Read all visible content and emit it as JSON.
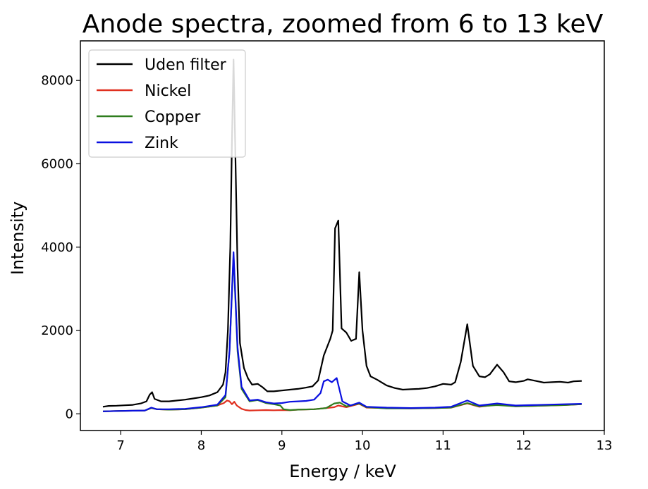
{
  "chart_data": {
    "type": "line",
    "title": "Anode spectra, zoomed from 6 to 13 keV",
    "xlabel": "Energy / keV",
    "ylabel": "Intensity",
    "xlim": [
      6.5,
      13.0
    ],
    "ylim": [
      -400,
      8950
    ],
    "xticks": [
      7,
      8,
      9,
      10,
      11,
      12,
      13
    ],
    "yticks": [
      0,
      2000,
      4000,
      6000,
      8000
    ],
    "grid": false,
    "legend_position": "top-left",
    "series": [
      {
        "name": "Uden filter",
        "color": "#000000",
        "points": [
          [
            6.78,
            170
          ],
          [
            6.85,
            190
          ],
          [
            6.95,
            195
          ],
          [
            7.05,
            205
          ],
          [
            7.15,
            215
          ],
          [
            7.25,
            250
          ],
          [
            7.32,
            300
          ],
          [
            7.36,
            460
          ],
          [
            7.39,
            520
          ],
          [
            7.42,
            360
          ],
          [
            7.5,
            300
          ],
          [
            7.6,
            300
          ],
          [
            7.7,
            320
          ],
          [
            7.8,
            340
          ],
          [
            7.9,
            370
          ],
          [
            8.0,
            400
          ],
          [
            8.1,
            440
          ],
          [
            8.2,
            520
          ],
          [
            8.27,
            700
          ],
          [
            8.3,
            1000
          ],
          [
            8.33,
            2000
          ],
          [
            8.36,
            4000
          ],
          [
            8.38,
            6500
          ],
          [
            8.4,
            8500
          ],
          [
            8.42,
            6500
          ],
          [
            8.45,
            3500
          ],
          [
            8.48,
            1700
          ],
          [
            8.53,
            1100
          ],
          [
            8.58,
            850
          ],
          [
            8.63,
            700
          ],
          [
            8.7,
            720
          ],
          [
            8.76,
            640
          ],
          [
            8.82,
            540
          ],
          [
            8.9,
            540
          ],
          [
            9.0,
            560
          ],
          [
            9.1,
            580
          ],
          [
            9.2,
            600
          ],
          [
            9.3,
            630
          ],
          [
            9.38,
            660
          ],
          [
            9.45,
            800
          ],
          [
            9.52,
            1400
          ],
          [
            9.6,
            1800
          ],
          [
            9.63,
            2000
          ],
          [
            9.66,
            4450
          ],
          [
            9.7,
            4640
          ],
          [
            9.74,
            2050
          ],
          [
            9.8,
            1950
          ],
          [
            9.86,
            1750
          ],
          [
            9.92,
            1800
          ],
          [
            9.96,
            3400
          ],
          [
            10.0,
            2000
          ],
          [
            10.05,
            1150
          ],
          [
            10.1,
            900
          ],
          [
            10.18,
            820
          ],
          [
            10.3,
            680
          ],
          [
            10.4,
            620
          ],
          [
            10.5,
            580
          ],
          [
            10.6,
            590
          ],
          [
            10.7,
            600
          ],
          [
            10.8,
            620
          ],
          [
            10.9,
            660
          ],
          [
            11.0,
            720
          ],
          [
            11.1,
            700
          ],
          [
            11.15,
            760
          ],
          [
            11.22,
            1250
          ],
          [
            11.3,
            2150
          ],
          [
            11.37,
            1150
          ],
          [
            11.45,
            900
          ],
          [
            11.52,
            880
          ],
          [
            11.58,
            950
          ],
          [
            11.67,
            1180
          ],
          [
            11.75,
            1000
          ],
          [
            11.82,
            780
          ],
          [
            11.9,
            760
          ],
          [
            12.0,
            790
          ],
          [
            12.05,
            830
          ],
          [
            12.15,
            790
          ],
          [
            12.25,
            750
          ],
          [
            12.35,
            760
          ],
          [
            12.45,
            770
          ],
          [
            12.55,
            750
          ],
          [
            12.62,
            780
          ],
          [
            12.72,
            790
          ]
        ]
      },
      {
        "name": "Nickel",
        "color": "#e03020",
        "points": [
          [
            6.78,
            60
          ],
          [
            7.0,
            70
          ],
          [
            7.3,
            80
          ],
          [
            7.38,
            140
          ],
          [
            7.45,
            110
          ],
          [
            7.6,
            100
          ],
          [
            7.8,
            110
          ],
          [
            8.0,
            150
          ],
          [
            8.2,
            200
          ],
          [
            8.28,
            260
          ],
          [
            8.32,
            320
          ],
          [
            8.35,
            300
          ],
          [
            8.38,
            230
          ],
          [
            8.41,
            290
          ],
          [
            8.44,
            200
          ],
          [
            8.5,
            120
          ],
          [
            8.55,
            90
          ],
          [
            8.6,
            80
          ],
          [
            8.7,
            85
          ],
          [
            8.8,
            90
          ],
          [
            8.9,
            85
          ],
          [
            9.0,
            90
          ],
          [
            9.1,
            85
          ],
          [
            9.2,
            100
          ],
          [
            9.4,
            110
          ],
          [
            9.55,
            140
          ],
          [
            9.65,
            160
          ],
          [
            9.7,
            200
          ],
          [
            9.8,
            160
          ],
          [
            9.96,
            240
          ],
          [
            10.05,
            150
          ],
          [
            10.3,
            140
          ],
          [
            10.6,
            130
          ],
          [
            10.9,
            140
          ],
          [
            11.1,
            150
          ],
          [
            11.3,
            250
          ],
          [
            11.45,
            170
          ],
          [
            11.67,
            220
          ],
          [
            11.9,
            180
          ],
          [
            12.1,
            190
          ],
          [
            12.3,
            200
          ],
          [
            12.5,
            210
          ],
          [
            12.72,
            230
          ]
        ]
      },
      {
        "name": "Copper",
        "color": "#2e7d1e",
        "points": [
          [
            6.78,
            60
          ],
          [
            7.0,
            70
          ],
          [
            7.3,
            80
          ],
          [
            7.38,
            140
          ],
          [
            7.45,
            110
          ],
          [
            7.6,
            100
          ],
          [
            7.8,
            110
          ],
          [
            8.0,
            150
          ],
          [
            8.2,
            200
          ],
          [
            8.3,
            400
          ],
          [
            8.35,
            1500
          ],
          [
            8.4,
            3800
          ],
          [
            8.45,
            1500
          ],
          [
            8.5,
            600
          ],
          [
            8.6,
            300
          ],
          [
            8.7,
            330
          ],
          [
            8.8,
            260
          ],
          [
            8.9,
            230
          ],
          [
            8.98,
            200
          ],
          [
            9.02,
            110
          ],
          [
            9.1,
            90
          ],
          [
            9.2,
            100
          ],
          [
            9.4,
            110
          ],
          [
            9.55,
            140
          ],
          [
            9.65,
            250
          ],
          [
            9.72,
            270
          ],
          [
            9.8,
            180
          ],
          [
            9.96,
            250
          ],
          [
            10.05,
            160
          ],
          [
            10.3,
            130
          ],
          [
            10.6,
            130
          ],
          [
            10.9,
            140
          ],
          [
            11.1,
            150
          ],
          [
            11.3,
            260
          ],
          [
            11.45,
            180
          ],
          [
            11.67,
            210
          ],
          [
            11.9,
            180
          ],
          [
            12.1,
            190
          ],
          [
            12.3,
            200
          ],
          [
            12.5,
            210
          ],
          [
            12.72,
            230
          ]
        ]
      },
      {
        "name": "Zink",
        "color": "#0a10e0",
        "points": [
          [
            6.78,
            60
          ],
          [
            7.0,
            70
          ],
          [
            7.3,
            80
          ],
          [
            7.38,
            150
          ],
          [
            7.45,
            110
          ],
          [
            7.6,
            110
          ],
          [
            7.8,
            120
          ],
          [
            8.0,
            160
          ],
          [
            8.2,
            220
          ],
          [
            8.3,
            450
          ],
          [
            8.35,
            1500
          ],
          [
            8.4,
            3880
          ],
          [
            8.45,
            1600
          ],
          [
            8.5,
            650
          ],
          [
            8.6,
            320
          ],
          [
            8.7,
            340
          ],
          [
            8.8,
            280
          ],
          [
            8.9,
            250
          ],
          [
            9.0,
            260
          ],
          [
            9.1,
            290
          ],
          [
            9.2,
            300
          ],
          [
            9.3,
            310
          ],
          [
            9.4,
            340
          ],
          [
            9.48,
            500
          ],
          [
            9.52,
            780
          ],
          [
            9.57,
            820
          ],
          [
            9.62,
            760
          ],
          [
            9.68,
            860
          ],
          [
            9.75,
            300
          ],
          [
            9.85,
            200
          ],
          [
            9.96,
            270
          ],
          [
            10.05,
            170
          ],
          [
            10.3,
            150
          ],
          [
            10.6,
            140
          ],
          [
            10.9,
            150
          ],
          [
            11.1,
            170
          ],
          [
            11.3,
            320
          ],
          [
            11.45,
            200
          ],
          [
            11.67,
            250
          ],
          [
            11.9,
            200
          ],
          [
            12.1,
            210
          ],
          [
            12.3,
            220
          ],
          [
            12.5,
            230
          ],
          [
            12.72,
            240
          ]
        ]
      }
    ]
  }
}
